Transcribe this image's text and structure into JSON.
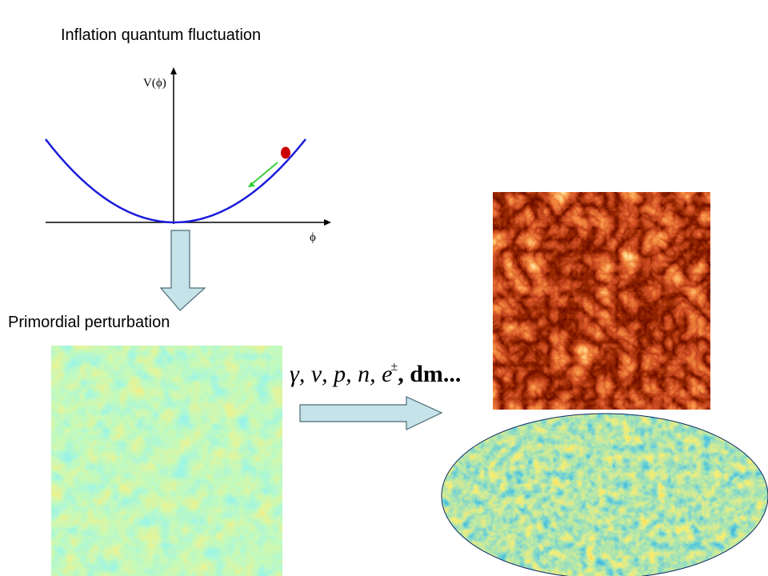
{
  "labels": {
    "inflation": "Inflation quantum fluctuation",
    "primordial": "Primordial perturbation"
  },
  "potential_plot": {
    "y_axis_label": "V(ϕ)",
    "x_axis_label": "ϕ",
    "curve_color": "#1a1adc",
    "ball_color": "#cc0000",
    "arrow_color": "#33cc33"
  },
  "particles": {
    "text": "γ, ν, p, n, e",
    "superscript": "±",
    "tail": ", dm..."
  },
  "colors": {
    "arrow_fill": "#c5e3e8",
    "arrow_stroke": "#4a6a78"
  }
}
